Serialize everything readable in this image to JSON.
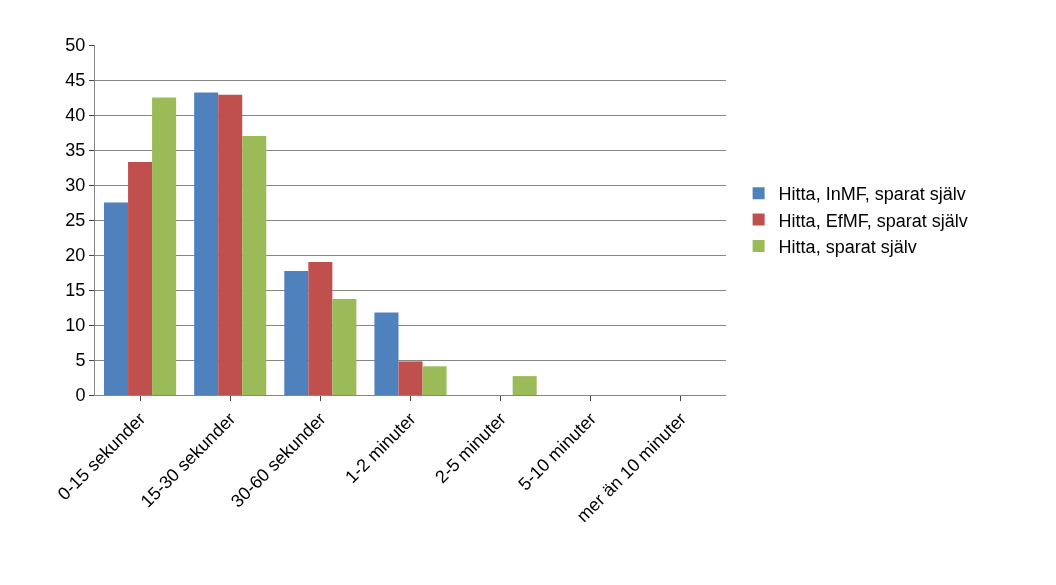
{
  "chart_data": {
    "type": "bar",
    "categories": [
      "0-15 sekunder",
      "15-30 sekunder",
      "30-60 sekunder",
      "1-2 minuter",
      "2-5 minuter",
      "5-10 minuter",
      "mer än 10 minuter"
    ],
    "series": [
      {
        "name": "Hitta, InMF, sparat själv",
        "color": "#4f81bd",
        "values": [
          27.5,
          43.2,
          17.7,
          11.8,
          0,
          0,
          0
        ]
      },
      {
        "name": "Hitta, EfMF, sparat själv",
        "color": "#c0504d",
        "values": [
          33.3,
          42.9,
          19.0,
          4.8,
          0,
          0,
          0
        ]
      },
      {
        "name": "Hitta, sparat själv",
        "color": "#9bbb59",
        "values": [
          42.5,
          37.0,
          13.7,
          4.1,
          2.7,
          0,
          0
        ]
      }
    ],
    "ylim": [
      0,
      50
    ],
    "yticks": [
      0,
      5,
      10,
      15,
      20,
      25,
      30,
      35,
      40,
      45,
      50
    ],
    "grid": "y",
    "legend": "right"
  }
}
